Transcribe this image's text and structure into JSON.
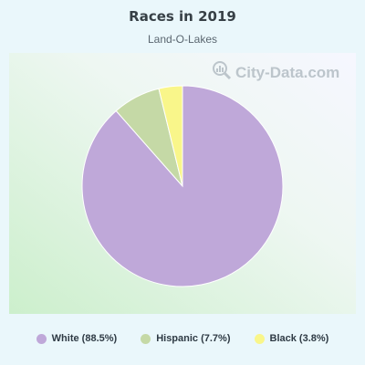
{
  "title": "Races in 2019",
  "subtitle": "Land-O-Lakes",
  "watermark": {
    "text": "City-Data.com",
    "icon": "magnifier-chart-icon"
  },
  "chart_data": {
    "type": "pie",
    "title": "Races in 2019",
    "subtitle": "Land-O-Lakes",
    "slices": [
      {
        "label": "White",
        "value": 88.5,
        "color": "#bfa8d9"
      },
      {
        "label": "Hispanic",
        "value": 7.7,
        "color": "#c5d9a6"
      },
      {
        "label": "Black",
        "value": 3.8,
        "color": "#f9f68a"
      }
    ],
    "legend_position": "bottom",
    "start_angle": "top, clockwise"
  },
  "legend": [
    {
      "text": "White (88.5%)",
      "color": "#bfa8d9"
    },
    {
      "text": "Hispanic (7.7%)",
      "color": "#c5d9a6"
    },
    {
      "text": "Black (3.8%)",
      "color": "#f9f68a"
    }
  ]
}
